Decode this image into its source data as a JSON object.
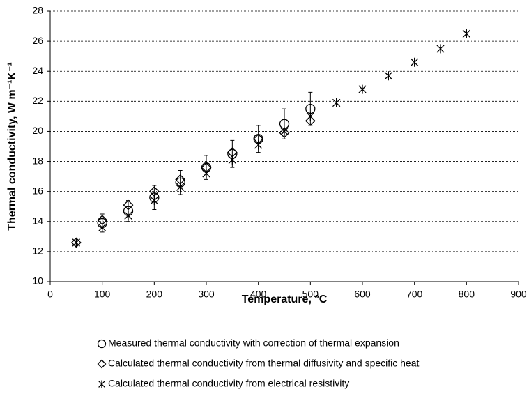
{
  "chart_data": {
    "type": "scatter",
    "xlabel": "Temperature, °C",
    "ylabel": "Thermal conductivity,  W m⁻¹K⁻¹",
    "xlim": [
      0,
      900
    ],
    "xticks": [
      0,
      100,
      200,
      300,
      400,
      500,
      600,
      700,
      800,
      900
    ],
    "ylim": [
      10,
      28
    ],
    "yticks": [
      10,
      12,
      14,
      16,
      18,
      20,
      22,
      24,
      26,
      28
    ],
    "grid": true,
    "legend": "bottom",
    "series": [
      {
        "name": "Measured thermal conductivity with correction of thermal expansion",
        "marker": "circle",
        "color": "#000000",
        "x": [
          100,
          150,
          200,
          250,
          300,
          350,
          400,
          450,
          500
        ],
        "values": [
          13.9,
          14.7,
          15.6,
          16.6,
          17.6,
          18.5,
          19.5,
          20.5,
          21.5
        ],
        "errors": [
          0.6,
          0.7,
          0.8,
          0.8,
          0.8,
          0.9,
          0.9,
          1.0,
          1.1
        ]
      },
      {
        "name": "Calculated thermal conductivity from thermal diffusivity and specific heat",
        "marker": "diamond",
        "color": "#000000",
        "x": [
          50,
          100,
          150,
          200,
          250,
          300,
          350,
          400,
          450,
          500
        ],
        "values": [
          12.6,
          14.1,
          15.1,
          16.0,
          16.8,
          17.6,
          18.6,
          19.5,
          19.9,
          20.7
        ]
      },
      {
        "name": "Calculated thermal conductivity from electrical resistivity",
        "marker": "asterisk",
        "color": "#000000",
        "x": [
          50,
          100,
          150,
          200,
          250,
          300,
          350,
          400,
          450,
          500,
          550,
          600,
          650,
          700,
          750,
          800
        ],
        "values": [
          12.6,
          13.6,
          14.4,
          15.4,
          16.3,
          17.2,
          18.1,
          19.1,
          20.0,
          21.0,
          21.9,
          22.8,
          23.7,
          24.6,
          25.5,
          26.5
        ]
      }
    ]
  }
}
